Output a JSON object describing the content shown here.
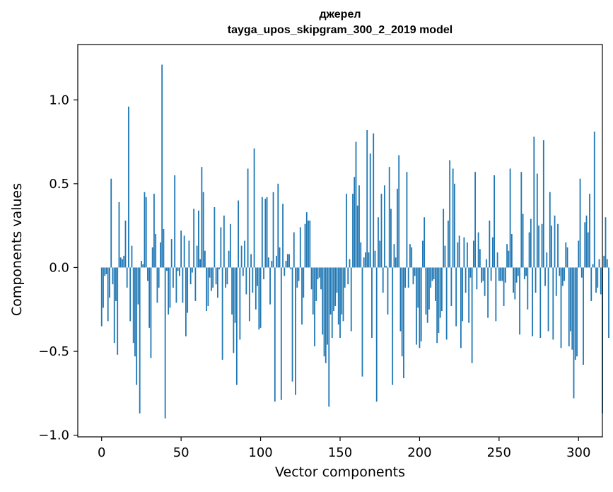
{
  "chart_data": {
    "type": "bar",
    "title_line1": "джерел",
    "title_line2": "tayga_upos_skipgram_300_2_2019 model",
    "xlabel": "Vector components",
    "ylabel": "Components values",
    "xlim": [
      -15,
      315
    ],
    "ylim": [
      -1.01,
      1.33
    ],
    "xticks": [
      0,
      50,
      100,
      150,
      200,
      250,
      300
    ],
    "yticks": [
      -1.0,
      -0.5,
      0.0,
      0.5,
      1.0
    ],
    "ytick_labels": [
      "−1.0",
      "−0.5",
      "0.0",
      "0.5",
      "1.0"
    ],
    "bar_color": "#1f77b4",
    "values": [
      -0.35,
      -0.24,
      -0.05,
      -0.04,
      -0.32,
      -0.18,
      0.53,
      -0.1,
      -0.45,
      -0.2,
      -0.52,
      0.39,
      0.06,
      0.05,
      0.07,
      0.28,
      -0.12,
      0.96,
      -0.32,
      0.13,
      -0.45,
      -0.53,
      -0.7,
      -0.22,
      -0.87,
      0.04,
      0.02,
      0.45,
      0.42,
      -0.08,
      -0.36,
      -0.54,
      0.12,
      0.44,
      0.2,
      -0.21,
      -0.12,
      0.15,
      1.21,
      0.23,
      -0.9,
      -0.02,
      -0.28,
      -0.24,
      0.17,
      -0.12,
      0.55,
      -0.21,
      -0.02,
      -0.05,
      0.22,
      -0.21,
      0.19,
      -0.41,
      -0.27,
      0.16,
      -0.1,
      -0.03,
      0.35,
      -0.2,
      0.13,
      0.34,
      0.05,
      0.6,
      0.45,
      0.1,
      -0.26,
      -0.23,
      -0.06,
      -0.14,
      -0.12,
      0.36,
      -0.1,
      -0.18,
      -0.01,
      0.24,
      -0.55,
      0.31,
      -0.12,
      -0.1,
      0.1,
      0.26,
      -0.28,
      -0.51,
      -0.33,
      -0.7,
      0.4,
      -0.43,
      0.13,
      -0.05,
      0.16,
      -0.16,
      0.59,
      -0.32,
      0.08,
      -0.15,
      0.71,
      -0.25,
      -0.11,
      -0.37,
      -0.36,
      0.42,
      -0.07,
      0.41,
      0.42,
      0.06,
      -0.22,
      0.04,
      0.45,
      -0.8,
      0.07,
      0.5,
      0.12,
      -0.79,
      0.38,
      -0.05,
      0.04,
      0.08,
      0.08,
      -0.01,
      -0.68,
      0.21,
      -0.76,
      -0.12,
      -0.08,
      0.24,
      -0.34,
      -0.18,
      0.26,
      0.33,
      0.28,
      0.28,
      -0.13,
      -0.28,
      -0.47,
      -0.2,
      -0.07,
      -0.06,
      -0.13,
      -0.4,
      -0.53,
      -0.57,
      -0.46,
      -0.83,
      -0.28,
      -0.42,
      -0.26,
      -0.23,
      -0.15,
      -0.34,
      -0.42,
      -0.28,
      -0.32,
      -0.12,
      0.44,
      -0.1,
      0.05,
      -0.38,
      0.44,
      0.54,
      0.75,
      0.37,
      0.49,
      0.15,
      -0.65,
      0.06,
      0.09,
      0.82,
      0.09,
      0.68,
      -0.42,
      0.8,
      0.1,
      -0.8,
      0.3,
      0.16,
      0.44,
      -0.15,
      0.49,
      0.01,
      -0.28,
      0.6,
      0.35,
      -0.7,
      0.14,
      0.06,
      0.47,
      0.67,
      -0.38,
      -0.53,
      -0.66,
      -0.12,
      0.57,
      -0.12,
      0.14,
      0.12,
      -0.1,
      -0.05,
      -0.46,
      -0.24,
      -0.48,
      -0.44,
      0.16,
      0.3,
      -0.28,
      -0.33,
      -0.25,
      -0.12,
      -0.08,
      -0.07,
      -0.2,
      -0.45,
      -0.39,
      -0.3,
      -0.26,
      0.35,
      0.13,
      -0.43,
      0.28,
      0.64,
      -0.23,
      0.59,
      0.5,
      -0.35,
      0.15,
      0.19,
      -0.48,
      -0.32,
      0.18,
      -0.15,
      0.15,
      -0.33,
      -0.06,
      -0.57,
      0.16,
      0.57,
      -0.13,
      0.21,
      0.11,
      -0.09,
      -0.08,
      -0.17,
      0.05,
      -0.3,
      0.28,
      -0.08,
      0.18,
      0.55,
      -0.32,
      0.09,
      -0.08,
      -0.08,
      -0.08,
      -0.23,
      -0.09,
      0.14,
      0.1,
      0.59,
      0.2,
      -0.15,
      -0.19,
      -0.09,
      -0.05,
      -0.4,
      0.57,
      0.32,
      -0.07,
      -0.05,
      -0.25,
      0.21,
      0.29,
      -0.41,
      0.78,
      -0.15,
      0.56,
      0.25,
      -0.42,
      0.26,
      0.76,
      -0.11,
      0.09,
      -0.38,
      0.45,
      0.25,
      -0.43,
      0.31,
      -0.17,
      0.26,
      -0.05,
      -0.48,
      -0.11,
      -0.08,
      0.15,
      0.12,
      -0.47,
      -0.38,
      -0.49,
      -0.78,
      -0.55,
      -0.53,
      0.16,
      0.53,
      -0.06,
      -0.58,
      0.27,
      0.31,
      0.21,
      0.44,
      -0.2,
      0.02,
      0.81,
      -0.15,
      -0.12,
      0.05,
      -0.16,
      -0.87,
      0.07,
      0.3,
      0.05,
      -0.42
    ]
  }
}
